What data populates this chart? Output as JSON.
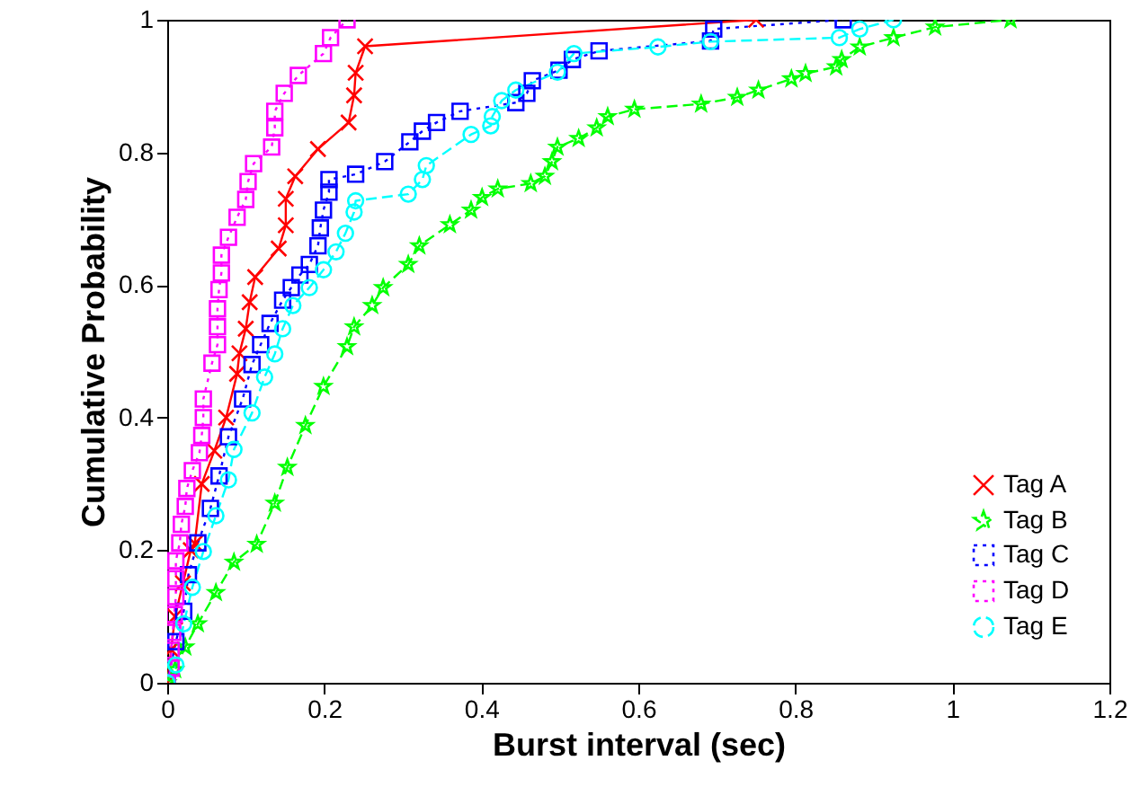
{
  "chart_data": {
    "type": "line",
    "xlabel": "Burst interval (sec)",
    "ylabel": "Cumulative Probability",
    "xlim": [
      0,
      1.2
    ],
    "ylim": [
      0,
      1
    ],
    "xticks": [
      0,
      0.2,
      0.4,
      0.6,
      0.8,
      1,
      1.2
    ],
    "yticks": [
      0,
      0.2,
      0.4,
      0.6,
      0.8,
      1
    ],
    "grid": false,
    "legend": "bottom right",
    "series": [
      {
        "name": "Tag A",
        "color": "#ff0000",
        "marker": "cross",
        "line_style": "solid",
        "x": [
          0,
          0.005,
          0.01,
          0.02,
          0.03,
          0.035,
          0.044,
          0.06,
          0.075,
          0.089,
          0.092,
          0.1,
          0.105,
          0.112,
          0.142,
          0.151,
          0.151,
          0.163,
          0.192,
          0.231,
          0.238,
          0.24,
          0.252,
          0.75
        ],
        "values": [
          0,
          0.05,
          0.1,
          0.15,
          0.2,
          0.21,
          0.3,
          0.35,
          0.4,
          0.466,
          0.497,
          0.534,
          0.574,
          0.612,
          0.655,
          0.69,
          0.73,
          0.764,
          0.805,
          0.845,
          0.886,
          0.92,
          0.96,
          1.0
        ]
      },
      {
        "name": "Tag B",
        "color": "#00ff00",
        "marker": "star",
        "line_style": "dashed",
        "x": [
          0,
          0.01,
          0.023,
          0.039,
          0.062,
          0.085,
          0.114,
          0.137,
          0.153,
          0.176,
          0.199,
          0.229,
          0.238,
          0.261,
          0.275,
          0.307,
          0.321,
          0.36,
          0.387,
          0.401,
          0.421,
          0.463,
          0.481,
          0.49,
          0.497,
          0.524,
          0.547,
          0.561,
          0.595,
          0.68,
          0.726,
          0.753,
          0.795,
          0.813,
          0.852,
          0.859,
          0.882,
          0.925,
          0.978,
          1.074
        ],
        "values": [
          0,
          0.02,
          0.054,
          0.089,
          0.136,
          0.182,
          0.209,
          0.271,
          0.325,
          0.388,
          0.447,
          0.507,
          0.537,
          0.569,
          0.596,
          0.631,
          0.659,
          0.691,
          0.713,
          0.732,
          0.745,
          0.753,
          0.764,
          0.786,
          0.808,
          0.821,
          0.837,
          0.854,
          0.865,
          0.873,
          0.883,
          0.894,
          0.911,
          0.919,
          0.929,
          0.94,
          0.959,
          0.973,
          0.989,
          1.0
        ]
      },
      {
        "name": "Tag C",
        "color": "#0000ff",
        "marker": "square",
        "line_style": "dotted",
        "x": [
          0,
          0.011,
          0.021,
          0.027,
          0.039,
          0.055,
          0.066,
          0.078,
          0.096,
          0.108,
          0.119,
          0.131,
          0.147,
          0.158,
          0.169,
          0.181,
          0.192,
          0.195,
          0.199,
          0.206,
          0.206,
          0.24,
          0.277,
          0.309,
          0.325,
          0.343,
          0.373,
          0.444,
          0.458,
          0.465,
          0.499,
          0.516,
          0.55,
          0.692,
          0.696,
          0.861
        ],
        "values": [
          0,
          0.062,
          0.108,
          0.163,
          0.211,
          0.263,
          0.312,
          0.371,
          0.428,
          0.48,
          0.51,
          0.542,
          0.577,
          0.596,
          0.615,
          0.631,
          0.659,
          0.686,
          0.713,
          0.74,
          0.759,
          0.767,
          0.786,
          0.816,
          0.832,
          0.845,
          0.862,
          0.875,
          0.889,
          0.908,
          0.924,
          0.94,
          0.953,
          0.968,
          0.986,
          1.0
        ]
      },
      {
        "name": "Tag D",
        "color": "#ff00ff",
        "marker": "square",
        "line_style": "dotted",
        "x": [
          0,
          0.005,
          0.005,
          0.007,
          0.009,
          0.011,
          0.011,
          0.011,
          0.016,
          0.018,
          0.023,
          0.025,
          0.032,
          0.041,
          0.044,
          0.046,
          0.046,
          0.057,
          0.064,
          0.064,
          0.064,
          0.066,
          0.069,
          0.069,
          0.078,
          0.089,
          0.1,
          0.103,
          0.11,
          0.133,
          0.137,
          0.137,
          0.149,
          0.167,
          0.199,
          0.208,
          0.229
        ],
        "values": [
          0,
          0.022,
          0.049,
          0.076,
          0.103,
          0.13,
          0.157,
          0.184,
          0.211,
          0.239,
          0.266,
          0.293,
          0.32,
          0.347,
          0.373,
          0.4,
          0.428,
          0.482,
          0.51,
          0.537,
          0.564,
          0.593,
          0.618,
          0.645,
          0.672,
          0.702,
          0.729,
          0.756,
          0.783,
          0.808,
          0.837,
          0.862,
          0.889,
          0.916,
          0.949,
          0.973,
          1.0
        ]
      },
      {
        "name": "Tag E",
        "color": "#00ffff",
        "marker": "circle",
        "line_style": "dashed",
        "x": [
          0,
          0.011,
          0.021,
          0.032,
          0.046,
          0.062,
          0.078,
          0.085,
          0.108,
          0.124,
          0.137,
          0.147,
          0.16,
          0.181,
          0.199,
          0.215,
          0.227,
          0.238,
          0.24,
          0.307,
          0.325,
          0.33,
          0.387,
          0.412,
          0.414,
          0.426,
          0.444,
          0.497,
          0.518,
          0.625,
          0.692,
          0.856,
          0.882,
          0.925
        ],
        "values": [
          0,
          0.027,
          0.089,
          0.144,
          0.198,
          0.252,
          0.306,
          0.352,
          0.407,
          0.461,
          0.496,
          0.534,
          0.569,
          0.596,
          0.623,
          0.65,
          0.678,
          0.71,
          0.727,
          0.737,
          0.759,
          0.78,
          0.827,
          0.84,
          0.854,
          0.878,
          0.894,
          0.921,
          0.949,
          0.959,
          0.967,
          0.973,
          0.986,
          1.0
        ]
      }
    ]
  }
}
